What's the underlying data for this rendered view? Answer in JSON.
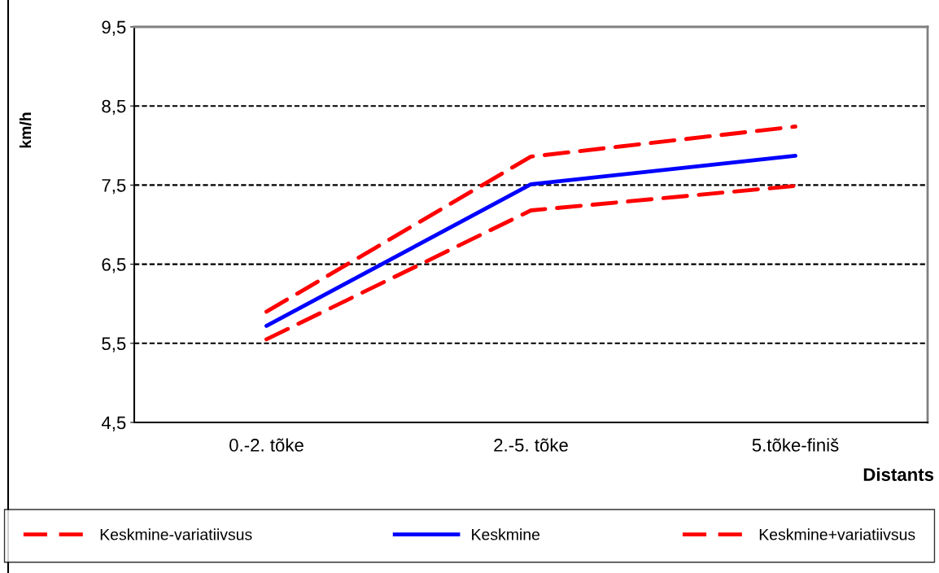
{
  "chart_data": {
    "type": "line",
    "categories": [
      "0.-2. tõke",
      "2.-5. tõke",
      "5.tõke-finiš"
    ],
    "xlabel": "Distants",
    "ylabel": "km/h",
    "series": [
      {
        "name": "Keskmine-variatiivsus",
        "color": "#ff0000",
        "line_style": "dashed",
        "values": [
          5.55,
          7.18,
          7.49
        ]
      },
      {
        "name": "Keskmine",
        "color": "#0000ff",
        "line_style": "solid",
        "values": [
          5.72,
          7.51,
          7.87
        ]
      },
      {
        "name": "Keskmine+variatiivsus",
        "color": "#ff0000",
        "line_style": "dashed",
        "values": [
          5.9,
          7.86,
          8.24
        ]
      }
    ],
    "ylim": [
      4.5,
      9.5
    ],
    "yticks": [
      {
        "value": 4.5,
        "label": "4,5"
      },
      {
        "value": 5.5,
        "label": "5,5"
      },
      {
        "value": 6.5,
        "label": "6,5"
      },
      {
        "value": 7.5,
        "label": "7,5"
      },
      {
        "value": 8.5,
        "label": "8,5"
      },
      {
        "value": 9.5,
        "label": "9,5"
      }
    ],
    "grid": "y",
    "legend": "bottom",
    "marker": "none"
  }
}
